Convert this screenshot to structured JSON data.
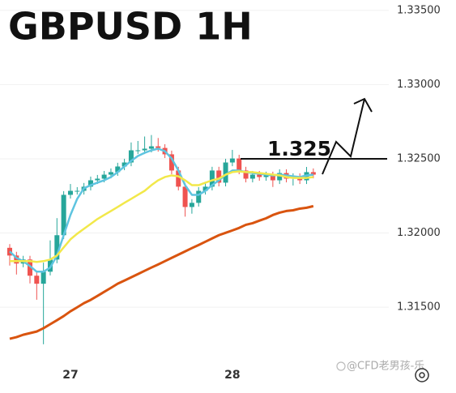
{
  "chart_data": {
    "type": "candlestick",
    "title": "GBPUSD 1H",
    "categories": [
      null,
      null,
      null,
      null,
      null,
      null,
      null,
      null,
      null,
      "27",
      null,
      null,
      null,
      null,
      null,
      null,
      null,
      null,
      null,
      null,
      null,
      null,
      null,
      null,
      null,
      null,
      null,
      null,
      null,
      null,
      null,
      null,
      null,
      "28",
      null,
      null,
      null,
      null,
      null,
      null,
      null,
      null,
      null,
      null,
      null,
      null
    ],
    "open": [
      1.319,
      1.31848,
      1.31794,
      1.31821,
      1.31712,
      1.31658,
      1.31739,
      1.31821,
      1.31985,
      1.32257,
      1.32284,
      1.32284,
      1.32312,
      1.32355,
      1.32366,
      1.32393,
      1.3241,
      1.32448,
      1.32475,
      1.32557,
      1.32557,
      1.32568,
      1.32584,
      1.32573,
      1.3253,
      1.32421,
      1.32312,
      1.32175,
      1.32203,
      1.32284,
      1.32312,
      1.32421,
      1.32339,
      1.32475,
      1.32502,
      1.32421,
      1.32366,
      1.32393,
      1.32377,
      1.32388,
      1.32355,
      1.32404,
      1.32366,
      1.32377,
      1.32355,
      1.3241
    ],
    "high": [
      1.31925,
      1.31873,
      1.31846,
      1.31846,
      1.31737,
      1.318,
      1.3195,
      1.321,
      1.32282,
      1.3233,
      1.32309,
      1.32337,
      1.3238,
      1.32391,
      1.32418,
      1.32435,
      1.32473,
      1.325,
      1.3261,
      1.3262,
      1.3265,
      1.3266,
      1.3264,
      1.32598,
      1.32555,
      1.32446,
      1.32337,
      1.32228,
      1.32309,
      1.32337,
      1.32446,
      1.32446,
      1.325,
      1.3256,
      1.32527,
      1.32446,
      1.32418,
      1.32418,
      1.32413,
      1.32413,
      1.32429,
      1.32429,
      1.32402,
      1.32402,
      1.32445,
      1.32435
    ],
    "low": [
      1.3178,
      1.3172,
      1.31769,
      1.3166,
      1.3155,
      1.3125,
      1.31714,
      1.31796,
      1.3196,
      1.32232,
      1.32259,
      1.32259,
      1.32287,
      1.3233,
      1.32341,
      1.32368,
      1.32385,
      1.32423,
      1.3245,
      1.32532,
      1.32532,
      1.32543,
      1.32548,
      1.32505,
      1.32396,
      1.32287,
      1.3211,
      1.3213,
      1.32178,
      1.32259,
      1.32287,
      1.32314,
      1.32314,
      1.3245,
      1.32396,
      1.32341,
      1.32341,
      1.32352,
      1.32352,
      1.3231,
      1.3233,
      1.32341,
      1.3232,
      1.3233,
      1.3233,
      1.32368
    ],
    "close": [
      1.31848,
      1.31794,
      1.31821,
      1.31712,
      1.31658,
      1.31739,
      1.31821,
      1.31985,
      1.32257,
      1.32284,
      1.32284,
      1.32312,
      1.32355,
      1.32366,
      1.32393,
      1.3241,
      1.32448,
      1.32475,
      1.32557,
      1.32557,
      1.32568,
      1.32584,
      1.32573,
      1.3253,
      1.32421,
      1.32312,
      1.32175,
      1.32203,
      1.32284,
      1.32312,
      1.32421,
      1.32339,
      1.32475,
      1.32502,
      1.32421,
      1.32366,
      1.32393,
      1.32377,
      1.32388,
      1.32355,
      1.32404,
      1.32366,
      1.32377,
      1.32355,
      1.3241,
      1.32393
    ],
    "up_color": "#26a69a",
    "down_color": "#ef5350",
    "series": [
      {
        "color": "#5ec4e0",
        "values": [
          1.31876,
          1.31832,
          1.3181,
          1.31777,
          1.31739,
          1.31739,
          1.31767,
          1.31848,
          1.31985,
          1.32121,
          1.3223,
          1.32301,
          1.32322,
          1.32339,
          1.32355,
          1.32377,
          1.3241,
          1.32448,
          1.32486,
          1.32519,
          1.3254,
          1.32557,
          1.32568,
          1.32551,
          1.32502,
          1.32421,
          1.32322,
          1.32257,
          1.32257,
          1.32284,
          1.32322,
          1.32355,
          1.32393,
          1.32421,
          1.32421,
          1.3241,
          1.32404,
          1.32399,
          1.32393,
          1.32388,
          1.32393,
          1.32388,
          1.32382,
          1.32377,
          1.32388,
          1.32393
        ]
      },
      {
        "color": "#f2e84a",
        "values": [
          1.3181,
          1.3181,
          1.3181,
          1.3181,
          1.31805,
          1.3181,
          1.31821,
          1.31848,
          1.31903,
          1.31957,
          1.31995,
          1.32028,
          1.32061,
          1.32094,
          1.32121,
          1.32148,
          1.32175,
          1.32203,
          1.3223,
          1.32257,
          1.32284,
          1.32322,
          1.32355,
          1.32377,
          1.32388,
          1.32382,
          1.32355,
          1.32322,
          1.32322,
          1.32339,
          1.32355,
          1.32366,
          1.32393,
          1.3241,
          1.32415,
          1.3241,
          1.3241,
          1.32404,
          1.32399,
          1.32393,
          1.32388,
          1.32377,
          1.32371,
          1.32371,
          1.32371,
          1.32377
        ]
      },
      {
        "color": "#d9540f",
        "values": [
          1.31287,
          1.31298,
          1.31314,
          1.31325,
          1.31336,
          1.31358,
          1.31385,
          1.31412,
          1.3144,
          1.31472,
          1.31499,
          1.31527,
          1.31549,
          1.31576,
          1.31603,
          1.3163,
          1.31658,
          1.31679,
          1.31701,
          1.31723,
          1.31745,
          1.31767,
          1.31788,
          1.3181,
          1.31832,
          1.31854,
          1.31876,
          1.31898,
          1.31919,
          1.31941,
          1.31963,
          1.31985,
          1.32001,
          1.32017,
          1.32034,
          1.32055,
          1.32066,
          1.32083,
          1.32099,
          1.32121,
          1.32137,
          1.32148,
          1.32153,
          1.32164,
          1.3217,
          1.32181
        ]
      }
    ],
    "level": 1.325,
    "ylim": [
      1.3114,
      1.3357
    ],
    "yticks": [
      {
        "value": 1.315,
        "label": "1.31500"
      },
      {
        "value": 1.32,
        "label": "1.32000"
      },
      {
        "value": 1.325,
        "label": "1.32500"
      },
      {
        "value": 1.33,
        "label": "1.33000"
      },
      {
        "value": 1.335,
        "label": "1.33500"
      }
    ],
    "grid": true,
    "watermark": "@CFD老男孩-乐"
  }
}
